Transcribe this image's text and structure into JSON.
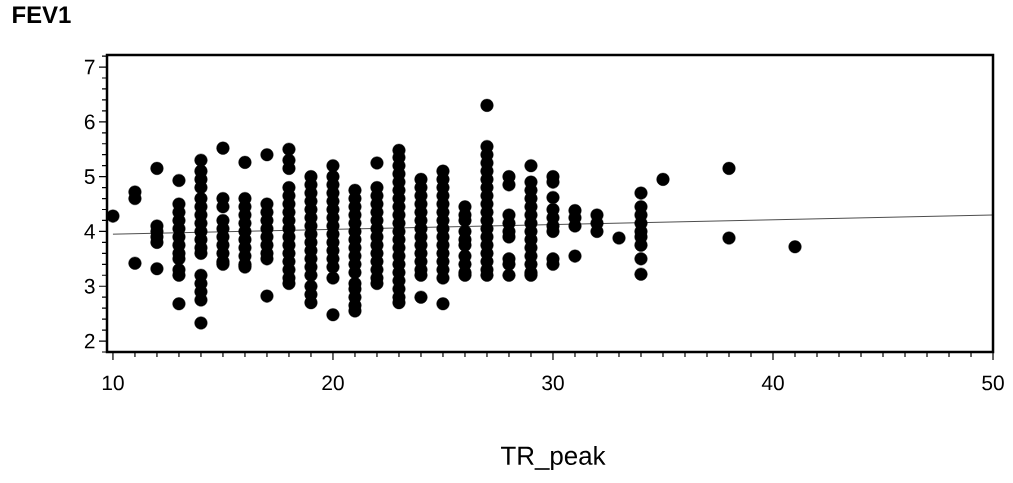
{
  "chart_data": {
    "type": "scatter",
    "xlabel": "TR_peak",
    "ylabel": "FEV1",
    "marker": "circle",
    "xlim": [
      9.73,
      50
    ],
    "ylim": [
      1.8,
      7.22
    ],
    "xticks": [
      10,
      {
        "value": 11,
        "label": null
      },
      {
        "value": 12,
        "label": null
      },
      {
        "value": 13,
        "label": null
      },
      {
        "value": 14,
        "label": null
      },
      {
        "value": 15,
        "label": null
      },
      {
        "value": 16,
        "label": null
      },
      {
        "value": 17,
        "label": null
      },
      {
        "value": 18,
        "label": null
      },
      {
        "value": 19,
        "label": null
      },
      20,
      {
        "value": 21,
        "label": null
      },
      {
        "value": 22,
        "label": null
      },
      {
        "value": 23,
        "label": null
      },
      {
        "value": 24,
        "label": null
      },
      {
        "value": 25,
        "label": null
      },
      {
        "value": 26,
        "label": null
      },
      {
        "value": 27,
        "label": null
      },
      {
        "value": 28,
        "label": null
      },
      {
        "value": 29,
        "label": null
      },
      30,
      {
        "value": 31,
        "label": null
      },
      {
        "value": 32,
        "label": null
      },
      {
        "value": 33,
        "label": null
      },
      {
        "value": 34,
        "label": null
      },
      {
        "value": 35,
        "label": null
      },
      {
        "value": 36,
        "label": null
      },
      {
        "value": 37,
        "label": null
      },
      {
        "value": 38,
        "label": null
      },
      {
        "value": 39,
        "label": null
      },
      40,
      {
        "value": 41,
        "label": null
      },
      {
        "value": 42,
        "label": null
      },
      {
        "value": 43,
        "label": null
      },
      {
        "value": 44,
        "label": null
      },
      {
        "value": 45,
        "label": null
      },
      {
        "value": 46,
        "label": null
      },
      {
        "value": 47,
        "label": null
      },
      {
        "value": 48,
        "label": null
      },
      {
        "value": 49,
        "label": null
      },
      50
    ],
    "yticks": [
      {
        "value": 1.8,
        "label": null
      },
      2,
      {
        "value": 2.2,
        "label": null
      },
      {
        "value": 2.4,
        "label": null
      },
      {
        "value": 2.6,
        "label": null
      },
      {
        "value": 2.8,
        "label": null
      },
      3,
      {
        "value": 3.2,
        "label": null
      },
      {
        "value": 3.4,
        "label": null
      },
      {
        "value": 3.6,
        "label": null
      },
      {
        "value": 3.8,
        "label": null
      },
      4,
      {
        "value": 4.2,
        "label": null
      },
      {
        "value": 4.4,
        "label": null
      },
      {
        "value": 4.6,
        "label": null
      },
      {
        "value": 4.8,
        "label": null
      },
      5,
      {
        "value": 5.2,
        "label": null
      },
      {
        "value": 5.4,
        "label": null
      },
      {
        "value": 5.6,
        "label": null
      },
      {
        "value": 5.8,
        "label": null
      },
      6,
      {
        "value": 6.2,
        "label": null
      },
      {
        "value": 6.4,
        "label": null
      },
      {
        "value": 6.6,
        "label": null
      },
      {
        "value": 6.8,
        "label": null
      },
      7,
      {
        "value": 7.2,
        "label": null
      }
    ],
    "series": [
      {
        "color": "#000000",
        "x": [
          10,
          11,
          11,
          11,
          12,
          12,
          12,
          12,
          12,
          12,
          13,
          13,
          13,
          13,
          13,
          13,
          13,
          13,
          13,
          13,
          13,
          13,
          14,
          14,
          14,
          14,
          14,
          14,
          14,
          14,
          14,
          14,
          14,
          14,
          14,
          14,
          14,
          14,
          14,
          15,
          15,
          15,
          15,
          15,
          15,
          15,
          15,
          15,
          15,
          16,
          16,
          16,
          16,
          16,
          16,
          16,
          16,
          16,
          16,
          16,
          17,
          17,
          17,
          17,
          17,
          17,
          17,
          17,
          17,
          17,
          18,
          18,
          18,
          18,
          18,
          18,
          18,
          18,
          18,
          18,
          18,
          18,
          18,
          18,
          18,
          18,
          19,
          19,
          19,
          19,
          19,
          19,
          19,
          19,
          19,
          19,
          19,
          19,
          19,
          19,
          19,
          19,
          20,
          20,
          20,
          20,
          20,
          20,
          20,
          20,
          20,
          20,
          20,
          20,
          20,
          20,
          20,
          21,
          21,
          21,
          21,
          21,
          21,
          21,
          21,
          21,
          21,
          21,
          21,
          21,
          21,
          21,
          21,
          22,
          22,
          22,
          22,
          22,
          22,
          22,
          22,
          22,
          22,
          22,
          22,
          22,
          22,
          23,
          23,
          23,
          23,
          23,
          23,
          23,
          23,
          23,
          23,
          23,
          23,
          23,
          23,
          23,
          23,
          23,
          23,
          23,
          23,
          24,
          24,
          24,
          24,
          24,
          24,
          24,
          24,
          24,
          24,
          24,
          24,
          24,
          24,
          25,
          25,
          25,
          25,
          25,
          25,
          25,
          25,
          25,
          25,
          25,
          25,
          25,
          25,
          25,
          26,
          26,
          26,
          26,
          26,
          26,
          26,
          26,
          26,
          26,
          27,
          27,
          27,
          27,
          27,
          27,
          27,
          27,
          27,
          27,
          27,
          27,
          27,
          27,
          27,
          27,
          27,
          27,
          28,
          28,
          28,
          28,
          28,
          28,
          28,
          28,
          28,
          29,
          29,
          29,
          29,
          29,
          29,
          29,
          29,
          29,
          29,
          29,
          29,
          29,
          29,
          30,
          30,
          30,
          30,
          30,
          30,
          30,
          30,
          30,
          31,
          31,
          31,
          31,
          32,
          32,
          32,
          33,
          34,
          34,
          34,
          34,
          34,
          34,
          34,
          34,
          34,
          35,
          38,
          38,
          41
        ],
        "values": [
          4.28,
          4.72,
          4.6,
          3.42,
          5.15,
          4.1,
          4.0,
          3.9,
          3.8,
          3.32,
          4.93,
          4.5,
          4.35,
          4.2,
          4.05,
          3.9,
          3.75,
          3.6,
          3.5,
          3.3,
          3.2,
          2.68,
          5.3,
          5.1,
          4.95,
          4.8,
          4.6,
          4.45,
          4.3,
          4.15,
          4.0,
          3.85,
          3.7,
          3.6,
          3.2,
          3.05,
          2.9,
          2.75,
          2.33,
          5.52,
          4.6,
          4.45,
          4.2,
          4.05,
          3.9,
          3.75,
          3.6,
          3.45,
          3.4,
          5.26,
          4.6,
          4.45,
          4.3,
          4.15,
          4.0,
          3.85,
          3.7,
          3.55,
          3.4,
          3.35,
          5.4,
          4.5,
          4.35,
          4.2,
          4.05,
          3.9,
          3.75,
          3.6,
          3.5,
          2.82,
          5.5,
          5.3,
          5.15,
          4.8,
          4.65,
          4.5,
          4.35,
          4.2,
          4.05,
          3.9,
          3.75,
          3.6,
          3.45,
          3.3,
          3.15,
          3.05,
          5.0,
          4.85,
          4.7,
          4.55,
          4.4,
          4.25,
          4.1,
          3.95,
          3.8,
          3.65,
          3.5,
          3.35,
          3.2,
          3.0,
          2.85,
          2.7,
          5.2,
          5.0,
          4.85,
          4.7,
          4.55,
          4.4,
          4.25,
          4.1,
          3.95,
          3.8,
          3.65,
          3.5,
          3.35,
          3.15,
          2.48,
          4.75,
          4.6,
          4.45,
          4.3,
          4.15,
          4.0,
          3.85,
          3.7,
          3.55,
          3.4,
          3.25,
          3.05,
          2.95,
          2.8,
          2.65,
          2.55,
          5.25,
          4.8,
          4.65,
          4.5,
          4.35,
          4.2,
          4.05,
          3.9,
          3.75,
          3.6,
          3.45,
          3.3,
          3.15,
          3.05,
          5.48,
          5.35,
          5.2,
          5.05,
          4.9,
          4.75,
          4.6,
          4.45,
          4.3,
          4.15,
          4.0,
          3.85,
          3.7,
          3.55,
          3.4,
          3.25,
          3.1,
          2.95,
          2.8,
          2.7,
          4.95,
          4.8,
          4.65,
          4.5,
          4.35,
          4.2,
          4.05,
          3.9,
          3.75,
          3.6,
          3.45,
          3.3,
          3.2,
          2.8,
          5.1,
          4.95,
          4.8,
          4.65,
          4.5,
          4.35,
          4.2,
          4.05,
          3.9,
          3.75,
          3.6,
          3.45,
          3.3,
          3.15,
          2.68,
          4.45,
          4.3,
          4.2,
          4.0,
          3.85,
          3.75,
          3.55,
          3.4,
          3.25,
          3.2,
          6.3,
          5.55,
          5.4,
          5.25,
          5.1,
          4.95,
          4.8,
          4.65,
          4.5,
          4.35,
          4.2,
          4.05,
          3.9,
          3.75,
          3.6,
          3.45,
          3.3,
          3.2,
          5.0,
          4.85,
          4.3,
          4.15,
          4.0,
          3.9,
          3.5,
          3.4,
          3.2,
          5.2,
          4.9,
          4.75,
          4.6,
          4.45,
          4.3,
          4.15,
          4.0,
          3.85,
          3.7,
          3.55,
          3.4,
          3.25,
          3.2,
          5.0,
          4.9,
          4.62,
          4.4,
          4.25,
          4.1,
          4.0,
          3.5,
          3.4,
          4.38,
          4.25,
          4.1,
          3.55,
          4.3,
          4.15,
          4.0,
          3.88,
          4.7,
          4.45,
          4.3,
          4.15,
          4.0,
          3.9,
          3.75,
          3.5,
          3.22,
          4.95,
          5.15,
          3.88,
          3.72
        ]
      },
      {
        "type": "line",
        "marker": "none",
        "color": "#000000",
        "x": [
          10,
          50
        ],
        "values": [
          3.95,
          4.3
        ]
      }
    ]
  }
}
